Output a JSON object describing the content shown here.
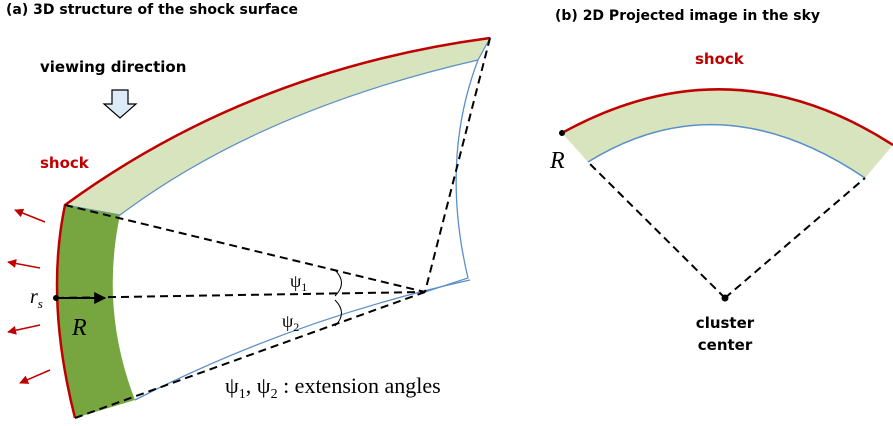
{
  "panel_a": {
    "title": "(a) 3D structure of the shock surface",
    "viewing_direction": "viewing direction",
    "shock_label": "shock",
    "rs": {
      "symbol": "r",
      "subscript": "s"
    },
    "R": "R",
    "psi1": {
      "symbol": "ψ",
      "subscript": "1"
    },
    "psi2": {
      "symbol": "ψ",
      "subscript": "2"
    },
    "caption": [
      "ψ",
      "1",
      ", ",
      "ψ",
      "2",
      " : extension angles"
    ]
  },
  "panel_b": {
    "title": "(b) 2D Projected image in the sky",
    "shock_label": "shock",
    "R": "R",
    "center_label": [
      "cluster",
      "center"
    ]
  }
}
